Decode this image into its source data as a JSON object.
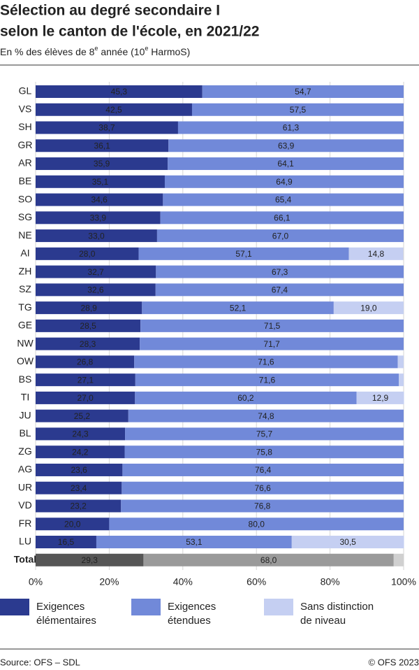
{
  "chart_data": {
    "type": "stacked-bar-horizontal",
    "title": [
      "Sélection au degré secondaire I",
      "selon le canton de l'école, en 2021/22"
    ],
    "subtitle": [
      "En % des élèves de 8",
      "e",
      " année (10",
      "e",
      " HarmoS)"
    ],
    "categories": [
      "GL",
      "VS",
      "SH",
      "GR",
      "AR",
      "BE",
      "SO",
      "SG",
      "NE",
      "AI",
      "ZH",
      "SZ",
      "TG",
      "GE",
      "NW",
      "OW",
      "BS",
      "TI",
      "JU",
      "BL",
      "ZG",
      "AG",
      "UR",
      "VD",
      "FR",
      "LU",
      "Total"
    ],
    "series": [
      {
        "name": "Exigences élémentaires",
        "color": "#2b3a8f",
        "values": [
          45.3,
          42.5,
          38.7,
          36.1,
          35.9,
          35.1,
          34.6,
          33.9,
          33.0,
          28.0,
          32.7,
          32.6,
          28.9,
          28.5,
          28.3,
          26.8,
          27.1,
          27.0,
          25.2,
          24.3,
          24.2,
          23.6,
          23.4,
          23.2,
          20.0,
          16.5,
          29.3
        ],
        "value_labels": [
          "45,3",
          "42,5",
          "38,7",
          "36,1",
          "35,9",
          "35,1",
          "34,6",
          "33,9",
          "33,0",
          "28,0",
          "32,7",
          "32,6",
          "28,9",
          "28,5",
          "28,3",
          "26,8",
          "27,1",
          "27,0",
          "25,2",
          "24,3",
          "24,2",
          "23,6",
          "23,4",
          "23,2",
          "20,0",
          "16,5",
          "29,3"
        ]
      },
      {
        "name": "Exigences étendues",
        "color": "#7189d9",
        "values": [
          54.7,
          57.5,
          61.3,
          63.9,
          64.1,
          64.9,
          65.4,
          66.1,
          67.0,
          57.1,
          67.3,
          67.4,
          52.1,
          71.5,
          71.7,
          71.6,
          71.6,
          60.2,
          74.8,
          75.7,
          75.8,
          76.4,
          76.6,
          76.8,
          80.0,
          53.1,
          68.0
        ],
        "value_labels": [
          "54,7",
          "57,5",
          "61,3",
          "63,9",
          "64,1",
          "64,9",
          "65,4",
          "66,1",
          "67,0",
          "57,1",
          "67,3",
          "67,4",
          "52,1",
          "71,5",
          "71,7",
          "71,6",
          "71,6",
          "60,2",
          "74,8",
          "75,7",
          "75,8",
          "76,4",
          "76,6",
          "76,8",
          "80,0",
          "53,1",
          "68,0"
        ]
      },
      {
        "name": "Sans distinction de niveau",
        "color": "#c5cff2",
        "values": [
          null,
          null,
          null,
          null,
          null,
          null,
          null,
          null,
          null,
          14.8,
          null,
          null,
          19.0,
          null,
          null,
          1.6,
          1.3,
          12.9,
          null,
          null,
          null,
          null,
          null,
          null,
          null,
          30.5,
          2.7
        ],
        "value_labels": [
          null,
          null,
          null,
          null,
          null,
          null,
          null,
          null,
          null,
          "14,8",
          null,
          null,
          "19,0",
          null,
          null,
          null,
          null,
          "12,9",
          null,
          null,
          null,
          null,
          null,
          null,
          null,
          "30,5",
          null
        ]
      }
    ],
    "highlight_index": 26,
    "highlight_colors": [
      "#565656",
      "#9a9a9a",
      "#d0d0d0"
    ],
    "xlim": [
      0,
      100
    ],
    "xticks": [
      {
        "value": 0,
        "label": "0%"
      },
      {
        "value": 20,
        "label": "20%"
      },
      {
        "value": 40,
        "label": "40%"
      },
      {
        "value": 60,
        "label": "60%"
      },
      {
        "value": 80,
        "label": "80%"
      },
      {
        "value": 100,
        "label": "100%"
      }
    ],
    "grid": true,
    "source": "Source: OFS – SDL",
    "copyright": "© OFS 2023"
  }
}
